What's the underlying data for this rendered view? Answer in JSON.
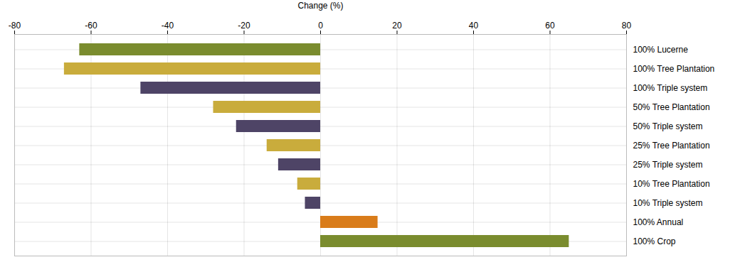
{
  "chart_data": {
    "type": "bar",
    "orientation": "horizontal",
    "xlabel": "Change (%)",
    "categories": [
      "100% Lucerne",
      "100% Tree Plantation",
      "100% Triple system",
      "50% Tree Plantation",
      "50% Triple system",
      "25% Tree Plantation",
      "25% Triple system",
      "10% Tree Plantation",
      "10% Triple system",
      "100% Annual",
      "100% Crop"
    ],
    "values": [
      -63,
      -67,
      -47,
      -28,
      -22,
      -14,
      -11,
      -6,
      -4,
      15,
      65
    ],
    "colors": [
      "#7a8c2e",
      "#c9ac3c",
      "#4e4466",
      "#c9ac3c",
      "#4e4466",
      "#c9ac3c",
      "#4e4466",
      "#c9ac3c",
      "#4e4466",
      "#d97c1a",
      "#7a8c2e"
    ],
    "xlim": [
      -80,
      80
    ],
    "xticks": [
      -80,
      -60,
      -40,
      -20,
      0,
      20,
      40,
      60,
      80
    ],
    "grid": true
  }
}
